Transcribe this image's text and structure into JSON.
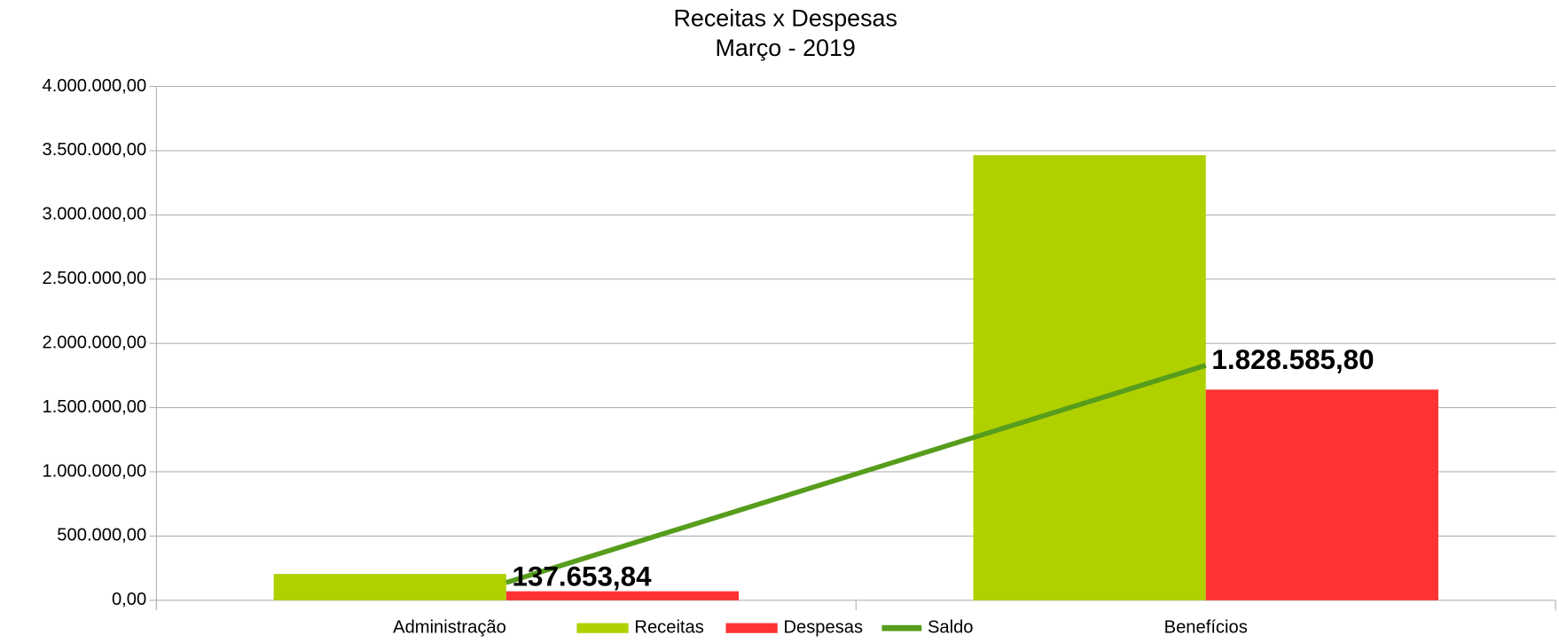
{
  "chart_data": {
    "type": "bar",
    "title": "Receitas x Despesas",
    "subtitle": "Março - 2019",
    "categories": [
      "Administração",
      "Benefícios"
    ],
    "series": [
      {
        "name": "Receitas",
        "color": "#b0d000",
        "type": "bar",
        "values": [
          205000,
          3465000
        ]
      },
      {
        "name": "Despesas",
        "color": "#ff3333",
        "type": "bar",
        "values": [
          70000,
          1640000
        ]
      },
      {
        "name": "Saldo",
        "color": "#579d1c",
        "type": "line",
        "values": [
          137653.84,
          1828585.8
        ],
        "value_labels": [
          "137.653,84",
          "1.828.585,80"
        ]
      }
    ],
    "ylim": [
      0,
      4000000
    ],
    "yticks": [
      {
        "value": 0,
        "label": "0,00"
      },
      {
        "value": 500000,
        "label": "500.000,00"
      },
      {
        "value": 1000000,
        "label": "1.000.000,00"
      },
      {
        "value": 1500000,
        "label": "1.500.000,00"
      },
      {
        "value": 2000000,
        "label": "2.000.000,00"
      },
      {
        "value": 2500000,
        "label": "2.500.000,00"
      },
      {
        "value": 3000000,
        "label": "3.000.000,00"
      },
      {
        "value": 3500000,
        "label": "3.500.000,00"
      },
      {
        "value": 4000000,
        "label": "4.000.000,00"
      }
    ],
    "grid": true,
    "legend": "bottom"
  }
}
